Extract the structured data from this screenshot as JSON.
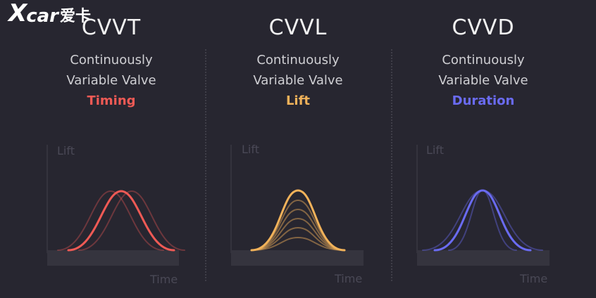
{
  "logo": {
    "x": "X",
    "car": "car",
    "cn": "爱卡"
  },
  "colors": {
    "background": "#272630",
    "timing": "#ef5a55",
    "lift": "#f1b25a",
    "duration": "#6a6bf2",
    "axis_label": "#4a4956",
    "baseline": "#35343e"
  },
  "panels": [
    {
      "title": "CVVT",
      "line1": "Continuously",
      "line2": "Variable Valve",
      "highlight": "Timing",
      "highlight_color": "#ef5a55",
      "axis_y": "Lift",
      "axis_x": "Time",
      "curve_type": "shift"
    },
    {
      "title": "CVVL",
      "line1": "Continuously",
      "line2": "Variable Valve",
      "highlight": "Lift",
      "highlight_color": "#f1b25a",
      "axis_y": "Lift",
      "axis_x": "Time",
      "curve_type": "height"
    },
    {
      "title": "CVVD",
      "line1": "Continuously",
      "line2": "Variable Valve",
      "highlight": "Duration",
      "highlight_color": "#6a6bf2",
      "axis_y": "Lift",
      "axis_x": "Time",
      "curve_type": "width"
    }
  ]
}
